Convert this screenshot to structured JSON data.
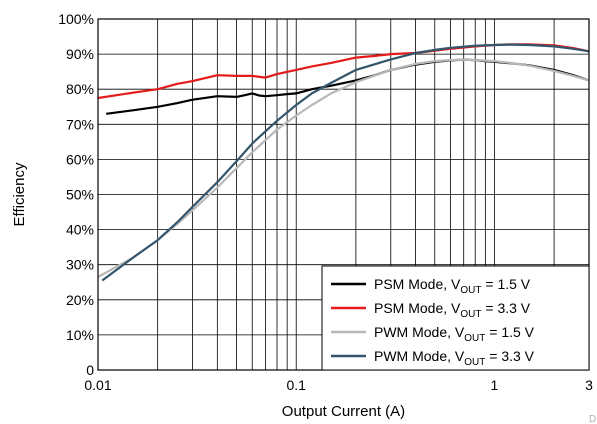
{
  "chart_data": {
    "type": "line",
    "xlabel": "Output Current (A)",
    "ylabel": "Efficiency",
    "xscale": "log",
    "xlim": [
      0.01,
      3
    ],
    "ylim": [
      0,
      100
    ],
    "x_ticks": [
      {
        "value": 0.01,
        "label": "0.01"
      },
      {
        "value": 0.1,
        "label": "0.1"
      },
      {
        "value": 1,
        "label": "1"
      },
      {
        "value": 3,
        "label": "3"
      }
    ],
    "y_ticks": [
      {
        "value": 0,
        "label": "0"
      },
      {
        "value": 10,
        "label": "10%"
      },
      {
        "value": 20,
        "label": "20%"
      },
      {
        "value": 30,
        "label": "30%"
      },
      {
        "value": 40,
        "label": "40%"
      },
      {
        "value": 50,
        "label": "50%"
      },
      {
        "value": 60,
        "label": "60%"
      },
      {
        "value": 70,
        "label": "70%"
      },
      {
        "value": 80,
        "label": "80%"
      },
      {
        "value": 90,
        "label": "90%"
      },
      {
        "value": 100,
        "label": "100%"
      }
    ],
    "grid": true,
    "legend_position": "bottom-right",
    "corner_mark": "D",
    "series": [
      {
        "legend_main": "PSM Mode, V",
        "legend_sub": "OUT",
        "legend_tail": " = 1.5 V",
        "color": "#000000",
        "x": [
          0.011,
          0.015,
          0.02,
          0.025,
          0.03,
          0.04,
          0.05,
          0.055,
          0.06,
          0.065,
          0.07,
          0.08,
          0.09,
          0.1,
          0.12,
          0.15,
          0.2,
          0.25,
          0.3,
          0.4,
          0.5,
          0.6,
          0.7,
          0.8,
          0.9,
          1.0,
          1.2,
          1.5,
          2.0,
          2.5,
          3.0
        ],
        "y": [
          73,
          74,
          75,
          76,
          77,
          78,
          77.8,
          78.3,
          78.8,
          78.2,
          78.0,
          78.3,
          78.6,
          78.8,
          80,
          81,
          82.5,
          84,
          85.5,
          87,
          87.8,
          88.2,
          88.4,
          88.3,
          88,
          87.8,
          87.4,
          86.8,
          85.5,
          84,
          82.5
        ]
      },
      {
        "legend_main": "PSM Mode, V",
        "legend_sub": "OUT",
        "legend_tail": " = 3.3 V",
        "color": "#e31b1b",
        "x": [
          0.01,
          0.015,
          0.02,
          0.025,
          0.03,
          0.04,
          0.05,
          0.06,
          0.07,
          0.08,
          0.1,
          0.12,
          0.15,
          0.2,
          0.25,
          0.3,
          0.4,
          0.5,
          0.6,
          0.8,
          1.0,
          1.2,
          1.5,
          2.0,
          2.5,
          3.0
        ],
        "y": [
          77.5,
          79,
          80,
          81.5,
          82.3,
          84,
          83.8,
          83.8,
          83.3,
          84.3,
          85.5,
          86.5,
          87.5,
          89,
          89.5,
          90,
          90.3,
          91,
          91.5,
          92.2,
          92.6,
          92.8,
          92.8,
          92.5,
          91.7,
          90.8
        ]
      },
      {
        "legend_main": "PWM Mode, V",
        "legend_sub": "OUT",
        "legend_tail": " = 1.5 V",
        "color": "#b8b8b8",
        "x": [
          0.01,
          0.015,
          0.02,
          0.025,
          0.03,
          0.04,
          0.05,
          0.06,
          0.07,
          0.08,
          0.1,
          0.12,
          0.15,
          0.2,
          0.3,
          0.4,
          0.5,
          0.6,
          0.7,
          0.8,
          1.0,
          1.2,
          1.5,
          2.0,
          2.5,
          3.0
        ],
        "y": [
          26.5,
          32,
          37,
          41.5,
          45.5,
          52,
          57.5,
          62,
          65.5,
          68.5,
          72.5,
          75.5,
          78.8,
          82,
          85.5,
          87.2,
          88,
          88.3,
          88.4,
          88.3,
          88,
          87.5,
          86.7,
          85.2,
          83.8,
          82.5
        ]
      },
      {
        "legend_main": "PWM Mode, V",
        "legend_sub": "OUT",
        "legend_tail": " = 3.3 V",
        "color": "#34566c",
        "x": [
          0.0105,
          0.015,
          0.02,
          0.025,
          0.03,
          0.04,
          0.05,
          0.06,
          0.07,
          0.08,
          0.1,
          0.12,
          0.15,
          0.2,
          0.3,
          0.4,
          0.5,
          0.6,
          0.8,
          1.0,
          1.2,
          1.5,
          2.0,
          2.5,
          3.0
        ],
        "y": [
          25.5,
          32,
          37,
          42,
          46.5,
          53.5,
          59.5,
          64.5,
          68,
          71,
          75.5,
          78.8,
          81.8,
          85.5,
          88.5,
          90.3,
          91.2,
          91.8,
          92.4,
          92.6,
          92.7,
          92.6,
          92.2,
          91.5,
          90.8
        ]
      }
    ]
  }
}
